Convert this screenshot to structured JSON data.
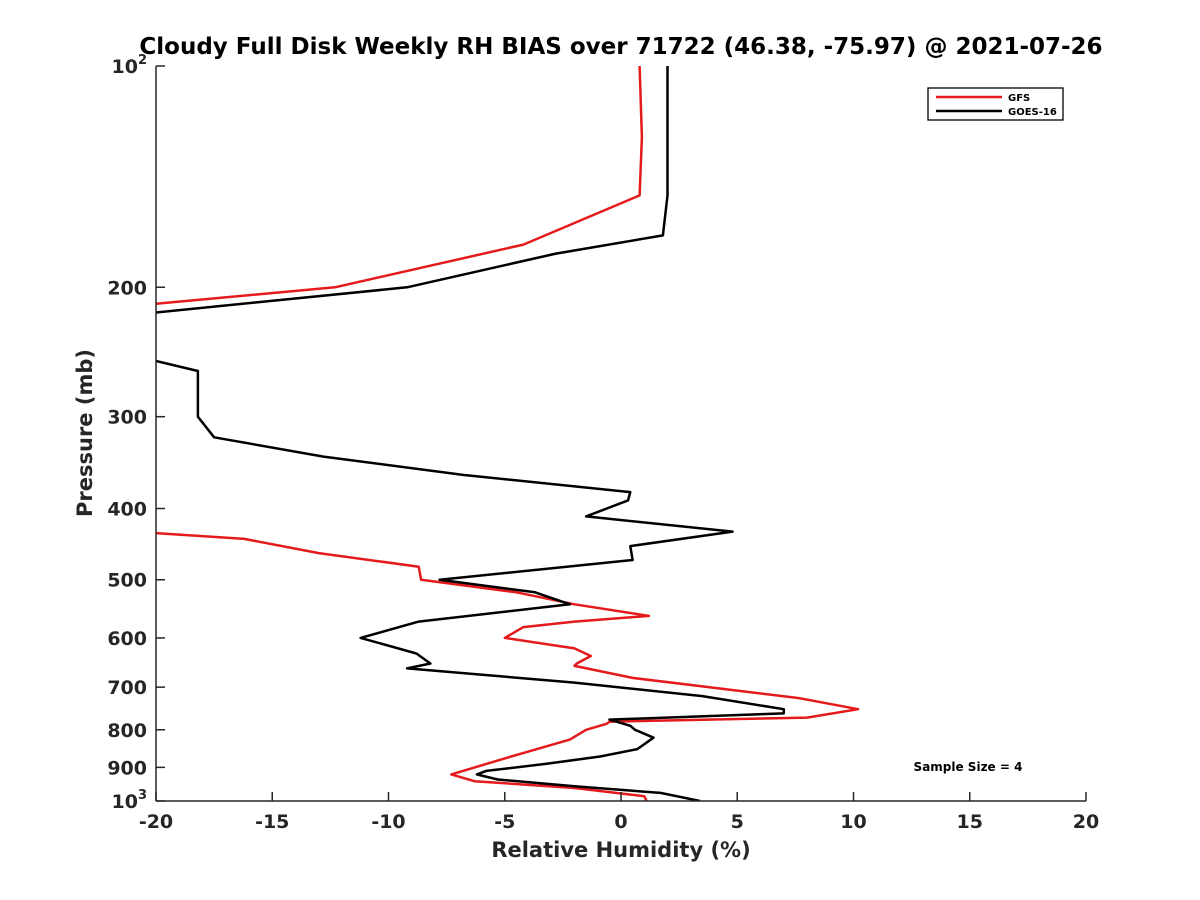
{
  "chart_data": {
    "type": "line",
    "title": "Cloudy Full Disk Weekly RH BIAS over 71722 (46.38, -75.97) @ 2021-07-26",
    "xlabel": "Relative Humidity (%)",
    "ylabel": "Pressure (mb)",
    "xlim": [
      -20,
      20
    ],
    "ylim": [
      100,
      1000
    ],
    "yscale": "log",
    "yreverse": true,
    "grid": false,
    "legend_position": "top-right",
    "xticks": [
      -20,
      -15,
      -10,
      -5,
      0,
      5,
      10,
      15,
      20
    ],
    "xtick_labels": [
      "-20",
      "-15",
      "-10",
      "-5",
      "0",
      "5",
      "10",
      "15",
      "20"
    ],
    "yticks": [
      100,
      200,
      300,
      400,
      500,
      600,
      700,
      800,
      900,
      1000
    ],
    "ytick_labels": [
      {
        "base": "10",
        "sup": "2"
      },
      {
        "base": "200",
        "sup": ""
      },
      {
        "base": "300",
        "sup": ""
      },
      {
        "base": "400",
        "sup": ""
      },
      {
        "base": "500",
        "sup": ""
      },
      {
        "base": "600",
        "sup": ""
      },
      {
        "base": "700",
        "sup": ""
      },
      {
        "base": "800",
        "sup": ""
      },
      {
        "base": "900",
        "sup": ""
      },
      {
        "base": "10",
        "sup": "3"
      }
    ],
    "series": [
      {
        "name": "GFS",
        "color": "#e41a1c",
        "points": [
          [
            0.8,
            100
          ],
          [
            0.9,
            125
          ],
          [
            0.8,
            150
          ],
          [
            -4.2,
            175
          ],
          [
            -12.3,
            200
          ],
          [
            -21.0,
            212
          ],
          [
            -21.0,
            430
          ],
          [
            -20.0,
            432
          ],
          [
            -16.2,
            440
          ],
          [
            -13.0,
            460
          ],
          [
            -8.7,
            480
          ],
          [
            -8.6,
            500
          ],
          [
            -4.5,
            520
          ],
          [
            -2.0,
            540
          ],
          [
            1.2,
            560
          ],
          [
            -2.0,
            570
          ],
          [
            -4.2,
            580
          ],
          [
            -5.0,
            600
          ],
          [
            -2.0,
            620
          ],
          [
            -1.3,
            635
          ],
          [
            -1.9,
            650
          ],
          [
            -2.0,
            655
          ],
          [
            0.5,
            680
          ],
          [
            7.7,
            725
          ],
          [
            10.2,
            750
          ],
          [
            8.0,
            770
          ],
          [
            -0.5,
            780
          ],
          [
            -0.6,
            785
          ],
          [
            -1.5,
            800
          ],
          [
            -2.2,
            825
          ],
          [
            -5.0,
            875
          ],
          [
            -7.3,
            920
          ],
          [
            -6.3,
            940
          ],
          [
            -2.0,
            960
          ],
          [
            1.0,
            985
          ],
          [
            1.1,
            1000
          ]
        ]
      },
      {
        "name": "GOES-16",
        "color": "#000000",
        "points": [
          [
            2.0,
            100
          ],
          [
            2.0,
            125
          ],
          [
            2.0,
            150
          ],
          [
            1.8,
            170
          ],
          [
            -2.8,
            180
          ],
          [
            -9.2,
            200
          ],
          [
            -21.0,
            218
          ],
          [
            -21.0,
            250
          ],
          [
            -20.0,
            252
          ],
          [
            -18.2,
            260
          ],
          [
            -18.2,
            300
          ],
          [
            -17.5,
            320
          ],
          [
            -12.8,
            340
          ],
          [
            -6.8,
            360
          ],
          [
            0.4,
            380
          ],
          [
            0.3,
            390
          ],
          [
            -1.5,
            410
          ],
          [
            4.8,
            430
          ],
          [
            0.4,
            450
          ],
          [
            0.5,
            470
          ],
          [
            -7.8,
            500
          ],
          [
            -3.7,
            520
          ],
          [
            -2.2,
            540
          ],
          [
            -8.7,
            570
          ],
          [
            -11.2,
            600
          ],
          [
            -8.8,
            630
          ],
          [
            -8.5,
            640
          ],
          [
            -8.2,
            650
          ],
          [
            -9.2,
            660
          ],
          [
            -2.0,
            690
          ],
          [
            3.5,
            720
          ],
          [
            7.0,
            750
          ],
          [
            7.0,
            760
          ],
          [
            -0.5,
            775
          ],
          [
            0.4,
            790
          ],
          [
            0.6,
            800
          ],
          [
            1.4,
            820
          ],
          [
            0.7,
            850
          ],
          [
            -0.9,
            870
          ],
          [
            -3.2,
            890
          ],
          [
            -5.8,
            910
          ],
          [
            -6.2,
            920
          ],
          [
            -5.9,
            925
          ],
          [
            -5.3,
            935
          ],
          [
            -2.0,
            955
          ],
          [
            1.7,
            975
          ],
          [
            3.4,
            1000
          ]
        ]
      }
    ],
    "legend": [
      "GFS",
      "GOES-16"
    ],
    "annotation": "Sample Size = 4"
  }
}
